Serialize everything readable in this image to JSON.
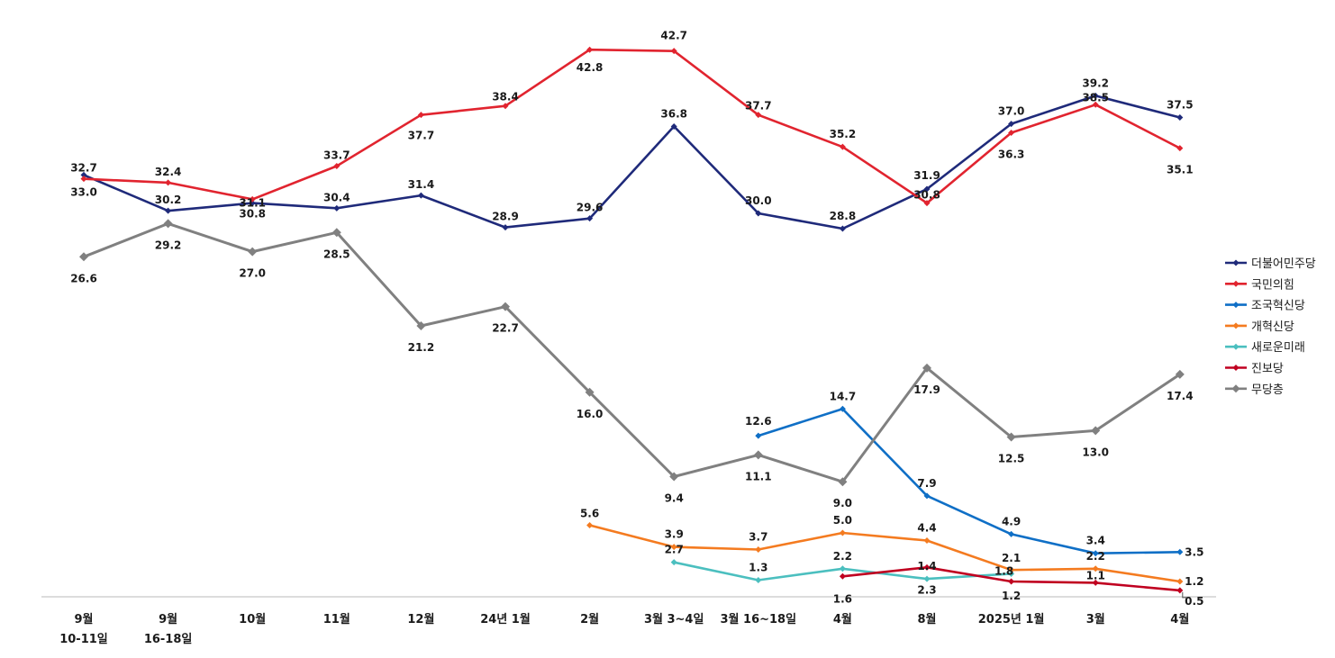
{
  "chart_data": {
    "type": "line",
    "title": "",
    "xlabel": "",
    "ylabel": "",
    "ylim": [
      0,
      45
    ],
    "grid": false,
    "legend_placement": "right",
    "categories": [
      [
        "9월",
        "10-11일"
      ],
      [
        "9월",
        "16-18일"
      ],
      [
        "10월"
      ],
      [
        "11월"
      ],
      [
        "12월"
      ],
      [
        "24년 1월"
      ],
      [
        "2월"
      ],
      [
        "3월 3~4일"
      ],
      [
        "3월 16~18일"
      ],
      [
        "4월"
      ],
      [
        "8월"
      ],
      [
        "2025년 1월"
      ],
      [
        "3월"
      ],
      [
        "4월"
      ]
    ],
    "series": [
      {
        "name": "더불어민주당",
        "color": "#1f2a7a",
        "marker": "diamond-small",
        "values": [
          33.0,
          30.2,
          30.8,
          30.4,
          31.4,
          28.9,
          29.6,
          36.8,
          30.0,
          28.8,
          31.9,
          37.0,
          39.2,
          37.5
        ],
        "labels": [
          "33.0",
          "30.2",
          "30.8",
          "30.4",
          "31.4",
          "28.9",
          "29.6",
          "36.8",
          "30.0",
          "28.8",
          "31.9",
          "37.0",
          "39.2",
          "37.5"
        ]
      },
      {
        "name": "국민의힘",
        "color": "#e1242f",
        "marker": "diamond-small",
        "values": [
          32.7,
          32.4,
          31.1,
          33.7,
          37.7,
          38.4,
          42.8,
          42.7,
          37.7,
          35.2,
          30.8,
          36.3,
          38.5,
          35.1
        ],
        "labels": [
          "32.7",
          "32.4",
          "31.1",
          "33.7",
          "37.7",
          "38.4",
          "42.8",
          "42.7",
          "37.7",
          "35.2",
          "30.8",
          "36.3",
          "38.5",
          "35.1"
        ]
      },
      {
        "name": "조국혁신당",
        "color": "#0f6fc6",
        "marker": "diamond-small",
        "values": [
          null,
          null,
          null,
          null,
          null,
          null,
          null,
          null,
          12.6,
          14.7,
          7.9,
          4.9,
          3.4,
          3.5
        ],
        "labels": [
          null,
          null,
          null,
          null,
          null,
          null,
          null,
          null,
          "12.6",
          "14.7",
          "7.9",
          "4.9",
          "3.4",
          "3.5"
        ]
      },
      {
        "name": "개혁신당",
        "color": "#f47b20",
        "marker": "diamond-small",
        "values": [
          null,
          null,
          null,
          null,
          null,
          null,
          5.6,
          3.9,
          3.7,
          5.0,
          4.4,
          2.1,
          2.2,
          1.2
        ],
        "labels": [
          null,
          null,
          null,
          null,
          null,
          null,
          "5.6",
          "3.9",
          "3.7",
          "5.0",
          "4.4",
          "2.1",
          "2.2",
          "1.2"
        ]
      },
      {
        "name": "새로운미래",
        "color": "#4bbfbf",
        "marker": "diamond-small",
        "values": [
          null,
          null,
          null,
          null,
          null,
          null,
          null,
          2.7,
          1.3,
          2.2,
          1.4,
          1.8,
          null,
          null
        ],
        "labels": [
          null,
          null,
          null,
          null,
          null,
          null,
          null,
          "2.7",
          "1.3",
          "2.2",
          "1.4",
          "1.8",
          null,
          null
        ]
      },
      {
        "name": "진보당",
        "color": "#c00020",
        "marker": "diamond-small",
        "values": [
          null,
          null,
          null,
          null,
          null,
          null,
          null,
          null,
          null,
          1.6,
          2.3,
          1.2,
          1.1,
          0.5
        ],
        "labels": [
          null,
          null,
          null,
          null,
          null,
          null,
          null,
          null,
          null,
          "1.6",
          "2.3",
          "1.2",
          "1.1",
          "0.5"
        ]
      },
      {
        "name": "무당층",
        "color": "#808080",
        "marker": "diamond-large",
        "values": [
          26.6,
          29.2,
          27.0,
          28.5,
          21.2,
          22.7,
          16.0,
          9.4,
          11.1,
          9.0,
          17.9,
          12.5,
          13.0,
          17.4
        ],
        "labels": [
          "26.6",
          "29.2",
          "27.0",
          "28.5",
          "21.2",
          "22.7",
          "16.0",
          "9.4",
          "11.1",
          "9.0",
          "17.9",
          "12.5",
          "13.0",
          "17.4"
        ]
      }
    ]
  }
}
